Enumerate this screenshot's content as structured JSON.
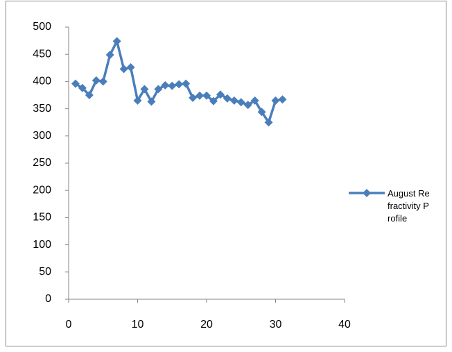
{
  "chart_data": {
    "type": "line",
    "x": [
      1,
      2,
      3,
      4,
      5,
      6,
      7,
      8,
      9,
      10,
      11,
      12,
      13,
      14,
      15,
      16,
      17,
      18,
      19,
      20,
      21,
      22,
      23,
      24,
      25,
      26,
      27,
      28,
      29,
      30,
      31
    ],
    "series": [
      {
        "name": "August Refractivity Profile",
        "color": "#4a7ebb",
        "values": [
          396,
          388,
          375,
          402,
          400,
          449,
          474,
          423,
          426,
          365,
          386,
          363,
          386,
          393,
          392,
          395,
          396,
          370,
          374,
          374,
          364,
          376,
          369,
          365,
          362,
          357,
          365,
          344,
          325,
          365,
          367
        ]
      }
    ],
    "xlim": [
      0,
      40
    ],
    "xticks": [
      0,
      10,
      20,
      30,
      40
    ],
    "ylim": [
      0,
      500
    ],
    "yticks": [
      0,
      50,
      100,
      150,
      200,
      250,
      300,
      350,
      400,
      450,
      500
    ],
    "legend": "right"
  }
}
